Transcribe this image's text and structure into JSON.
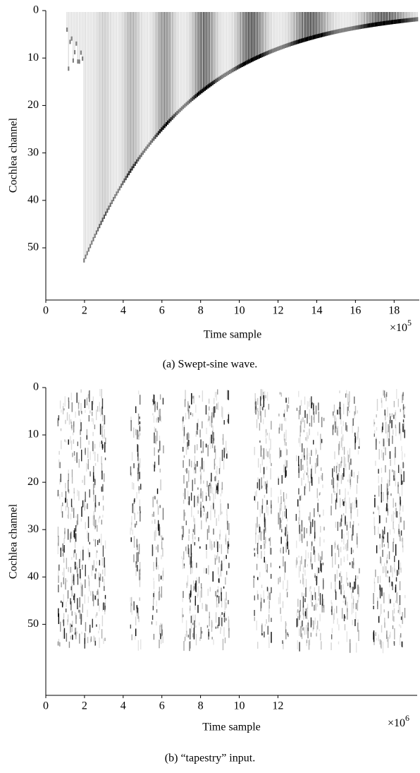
{
  "chart_data": [
    {
      "type": "heatmap",
      "caption": "(a) Swept-sine wave.",
      "xlabel": "Time sample",
      "ylabel": "Cochlea channel",
      "multiplier": "×10",
      "multiplier_exp": "5",
      "xlim": [
        0,
        19.3
      ],
      "xticks": [
        0,
        2,
        4,
        6,
        8,
        10,
        12,
        14,
        16,
        18
      ],
      "ylim": [
        0,
        61
      ],
      "yticks": [
        0,
        10,
        20,
        30,
        40,
        50
      ],
      "y_inverted": true
    },
    {
      "type": "heatmap",
      "caption": "(b) “tapestry” input.",
      "xlabel": "Time sample",
      "ylabel": "Cochlea channel",
      "multiplier": "×10",
      "multiplier_exp": "6",
      "xlim": [
        0,
        19.2
      ],
      "xticks": [
        0,
        2,
        4,
        6,
        8,
        10,
        12
      ],
      "ylim": [
        0,
        65
      ],
      "yticks": [
        0,
        10,
        20,
        30,
        40,
        50
      ],
      "y_inverted": true
    }
  ]
}
